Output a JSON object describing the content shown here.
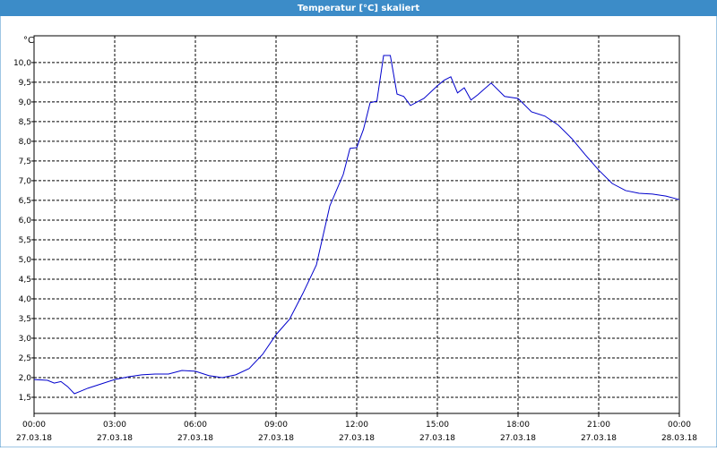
{
  "chart_data": {
    "type": "line",
    "title": "Temperatur [°C] skaliert",
    "y_label": "°C",
    "x": [
      0,
      0.5,
      0.75,
      1,
      1.25,
      1.5,
      1.75,
      2,
      2.5,
      3,
      3.5,
      4,
      4.5,
      5,
      5.5,
      6,
      6.5,
      7,
      7.5,
      8,
      8.5,
      9,
      9.5,
      10,
      10.5,
      11,
      11.5,
      11.75,
      12,
      12.25,
      12.5,
      12.75,
      13,
      13.25,
      13.5,
      13.75,
      14,
      14.5,
      15,
      15.25,
      15.5,
      15.75,
      16,
      16.25,
      16.5,
      17,
      17.5,
      18,
      18.5,
      19,
      19.5,
      20,
      20.5,
      21,
      21.5,
      22,
      22.5,
      23,
      23.5,
      24
    ],
    "series": [
      {
        "color": "#0000cc",
        "values": [
          1.95,
          1.93,
          1.86,
          1.9,
          1.77,
          1.59,
          1.66,
          1.73,
          1.84,
          1.95,
          2.02,
          2.07,
          2.09,
          2.09,
          2.18,
          2.16,
          2.05,
          2.0,
          2.07,
          2.23,
          2.59,
          3.09,
          3.48,
          4.14,
          4.86,
          6.36,
          7.16,
          7.82,
          7.84,
          8.3,
          8.98,
          9.02,
          10.18,
          10.18,
          9.2,
          9.14,
          8.91,
          9.09,
          9.41,
          9.55,
          9.64,
          9.23,
          9.36,
          9.05,
          9.18,
          9.48,
          9.14,
          9.09,
          8.75,
          8.64,
          8.41,
          8.07,
          7.66,
          7.27,
          6.93,
          6.75,
          6.68,
          6.66,
          6.61,
          6.52
        ]
      }
    ],
    "xlim": [
      0,
      24
    ],
    "xticks": [
      {
        "value": 0,
        "label": [
          "00:00",
          "27.03.18"
        ]
      },
      {
        "value": 3,
        "label": [
          "03:00",
          "27.03.18"
        ]
      },
      {
        "value": 6,
        "label": [
          "06:00",
          "27.03.18"
        ]
      },
      {
        "value": 9,
        "label": [
          "09:00",
          "27.03.18"
        ]
      },
      {
        "value": 12,
        "label": [
          "12:00",
          "27.03.18"
        ]
      },
      {
        "value": 15,
        "label": [
          "15:00",
          "27.03.18"
        ]
      },
      {
        "value": 18,
        "label": [
          "18:00",
          "27.03.18"
        ]
      },
      {
        "value": 21,
        "label": [
          "21:00",
          "27.03.18"
        ]
      },
      {
        "value": 24,
        "label": [
          "00:00",
          "28.03.18"
        ]
      }
    ],
    "ylim": [
      1.09,
      10.68
    ],
    "yticks": [
      {
        "value": 1.5,
        "label": "1,5"
      },
      {
        "value": 2,
        "label": "2,0"
      },
      {
        "value": 2.5,
        "label": "2,5"
      },
      {
        "value": 3,
        "label": "3,0"
      },
      {
        "value": 3.5,
        "label": "3,5"
      },
      {
        "value": 4,
        "label": "4,0"
      },
      {
        "value": 4.5,
        "label": "4,5"
      },
      {
        "value": 5,
        "label": "5,0"
      },
      {
        "value": 5.5,
        "label": "5,5"
      },
      {
        "value": 6,
        "label": "6,0"
      },
      {
        "value": 6.5,
        "label": "6,5"
      },
      {
        "value": 7,
        "label": "7,0"
      },
      {
        "value": 7.5,
        "label": "7,5"
      },
      {
        "value": 8,
        "label": "8,0"
      },
      {
        "value": 8.5,
        "label": "8,5"
      },
      {
        "value": 9,
        "label": "9,0"
      },
      {
        "value": 9.5,
        "label": "9,5"
      },
      {
        "value": 10,
        "label": "10,0"
      }
    ],
    "grid": true
  }
}
